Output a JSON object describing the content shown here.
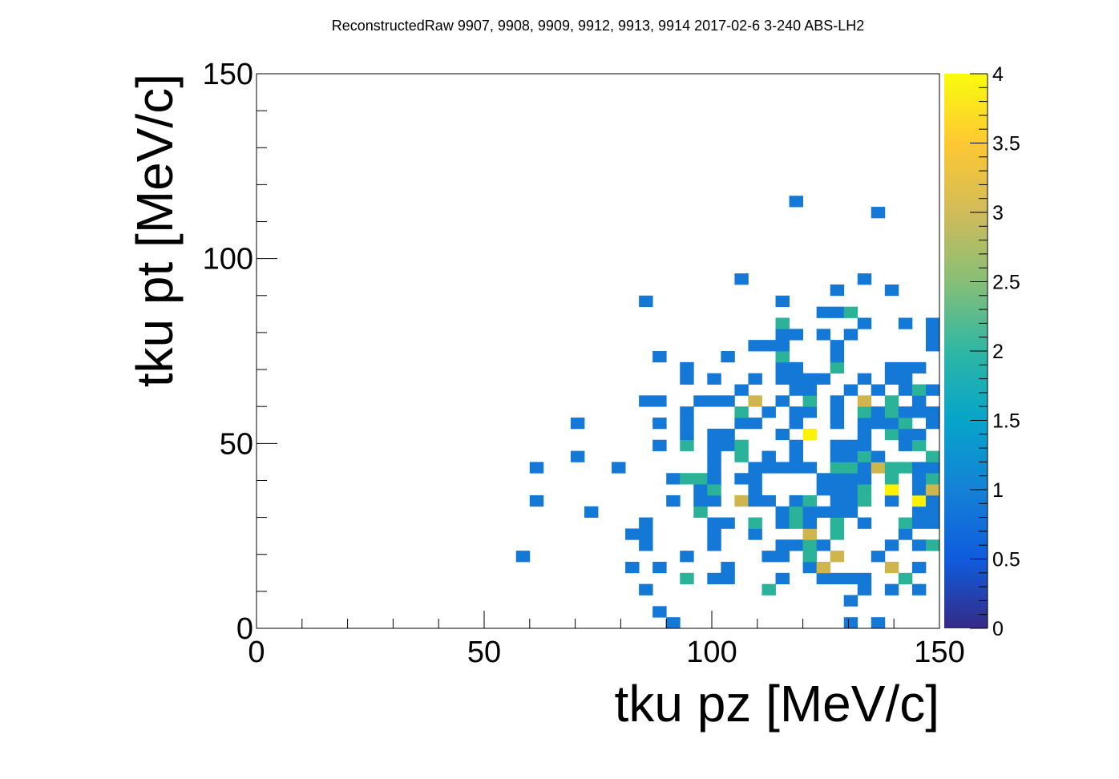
{
  "chart_data": {
    "type": "heatmap",
    "title": "ReconstructedRaw 9907, 9908, 9909, 9912, 9913, 9914 2017-02-6 3-240 ABS-LH2",
    "xlabel": "tku pz [MeV/c]",
    "ylabel": "tku pt [MeV/c]",
    "xlim": [
      0,
      150
    ],
    "ylim": [
      0,
      150
    ],
    "bin_width": 3,
    "x_ticks": [
      "0",
      "50",
      "100",
      "150"
    ],
    "y_ticks": [
      "0",
      "50",
      "100",
      "150"
    ],
    "colorbar": {
      "min": 0,
      "max": 4,
      "ticks": [
        "0",
        "0.5",
        "1",
        "1.5",
        "2",
        "2.5",
        "3",
        "3.5",
        "4"
      ]
    },
    "colors": {
      "1": "#1478d6",
      "2": "#2bb39a",
      "3": "#cfb54e",
      "4": "#fff200"
    },
    "bins": [
      [
        91.5,
        1.5,
        1
      ],
      [
        130.5,
        1.5,
        1
      ],
      [
        136.5,
        1.5,
        1
      ],
      [
        88.5,
        4.5,
        1
      ],
      [
        130.5,
        7.5,
        1
      ],
      [
        85.5,
        10.5,
        1
      ],
      [
        112.5,
        10.5,
        2
      ],
      [
        133.5,
        10.5,
        1
      ],
      [
        139.5,
        10.5,
        1
      ],
      [
        145.5,
        10.5,
        1
      ],
      [
        94.5,
        13.5,
        2
      ],
      [
        100.5,
        13.5,
        1
      ],
      [
        103.5,
        13.5,
        1
      ],
      [
        115.5,
        13.5,
        1
      ],
      [
        124.5,
        13.5,
        1
      ],
      [
        127.5,
        13.5,
        1
      ],
      [
        130.5,
        13.5,
        1
      ],
      [
        133.5,
        13.5,
        1
      ],
      [
        142.5,
        13.5,
        2
      ],
      [
        82.5,
        16.5,
        1
      ],
      [
        88.5,
        16.5,
        1
      ],
      [
        103.5,
        16.5,
        1
      ],
      [
        121.5,
        16.5,
        1
      ],
      [
        124.5,
        16.5,
        3
      ],
      [
        139.5,
        16.5,
        3
      ],
      [
        145.5,
        16.5,
        1
      ],
      [
        58.5,
        19.5,
        1
      ],
      [
        94.5,
        19.5,
        1
      ],
      [
        112.5,
        19.5,
        1
      ],
      [
        115.5,
        19.5,
        1
      ],
      [
        121.5,
        19.5,
        2
      ],
      [
        127.5,
        19.5,
        3
      ],
      [
        136.5,
        19.5,
        1
      ],
      [
        85.5,
        22.5,
        1
      ],
      [
        100.5,
        22.5,
        1
      ],
      [
        115.5,
        22.5,
        1
      ],
      [
        118.5,
        22.5,
        1
      ],
      [
        121.5,
        22.5,
        2
      ],
      [
        124.5,
        22.5,
        1
      ],
      [
        139.5,
        22.5,
        1
      ],
      [
        145.5,
        22.5,
        1
      ],
      [
        148.5,
        22.5,
        2
      ],
      [
        82.5,
        25.5,
        1
      ],
      [
        85.5,
        25.5,
        1
      ],
      [
        100.5,
        25.5,
        1
      ],
      [
        109.5,
        25.5,
        1
      ],
      [
        121.5,
        25.5,
        3
      ],
      [
        127.5,
        25.5,
        2
      ],
      [
        142.5,
        25.5,
        1
      ],
      [
        85.5,
        28.5,
        1
      ],
      [
        100.5,
        28.5,
        1
      ],
      [
        103.5,
        28.5,
        1
      ],
      [
        109.5,
        28.5,
        2
      ],
      [
        115.5,
        28.5,
        1
      ],
      [
        118.5,
        28.5,
        2
      ],
      [
        121.5,
        28.5,
        1
      ],
      [
        127.5,
        28.5,
        2
      ],
      [
        133.5,
        28.5,
        1
      ],
      [
        142.5,
        28.5,
        2
      ],
      [
        145.5,
        28.5,
        1
      ],
      [
        148.5,
        28.5,
        1
      ],
      [
        73.5,
        31.5,
        1
      ],
      [
        97.5,
        31.5,
        2
      ],
      [
        115.5,
        31.5,
        1
      ],
      [
        118.5,
        31.5,
        2
      ],
      [
        121.5,
        31.5,
        1
      ],
      [
        124.5,
        31.5,
        1
      ],
      [
        127.5,
        31.5,
        1
      ],
      [
        130.5,
        31.5,
        1
      ],
      [
        145.5,
        31.5,
        1
      ],
      [
        148.5,
        31.5,
        1
      ],
      [
        61.5,
        34.5,
        1
      ],
      [
        91.5,
        34.5,
        1
      ],
      [
        97.5,
        34.5,
        1
      ],
      [
        100.5,
        34.5,
        1
      ],
      [
        106.5,
        34.5,
        3
      ],
      [
        109.5,
        34.5,
        1
      ],
      [
        112.5,
        34.5,
        1
      ],
      [
        118.5,
        34.5,
        1
      ],
      [
        121.5,
        34.5,
        2
      ],
      [
        127.5,
        34.5,
        1
      ],
      [
        130.5,
        34.5,
        1
      ],
      [
        133.5,
        34.5,
        2
      ],
      [
        139.5,
        34.5,
        1
      ],
      [
        145.5,
        34.5,
        4
      ],
      [
        148.5,
        34.5,
        1
      ],
      [
        97.5,
        37.5,
        1
      ],
      [
        100.5,
        37.5,
        2
      ],
      [
        109.5,
        37.5,
        1
      ],
      [
        124.5,
        37.5,
        1
      ],
      [
        127.5,
        37.5,
        1
      ],
      [
        130.5,
        37.5,
        1
      ],
      [
        133.5,
        37.5,
        2
      ],
      [
        139.5,
        37.5,
        4
      ],
      [
        145.5,
        37.5,
        1
      ],
      [
        148.5,
        37.5,
        3
      ],
      [
        91.5,
        40.5,
        1
      ],
      [
        94.5,
        40.5,
        2
      ],
      [
        97.5,
        40.5,
        2
      ],
      [
        100.5,
        40.5,
        1
      ],
      [
        106.5,
        40.5,
        1
      ],
      [
        109.5,
        40.5,
        1
      ],
      [
        124.5,
        40.5,
        1
      ],
      [
        127.5,
        40.5,
        1
      ],
      [
        130.5,
        40.5,
        1
      ],
      [
        133.5,
        40.5,
        1
      ],
      [
        139.5,
        40.5,
        2
      ],
      [
        145.5,
        40.5,
        1
      ],
      [
        148.5,
        40.5,
        2
      ],
      [
        61.5,
        43.5,
        1
      ],
      [
        79.5,
        43.5,
        1
      ],
      [
        100.5,
        43.5,
        1
      ],
      [
        109.5,
        43.5,
        1
      ],
      [
        112.5,
        43.5,
        1
      ],
      [
        115.5,
        43.5,
        1
      ],
      [
        118.5,
        43.5,
        1
      ],
      [
        121.5,
        43.5,
        1
      ],
      [
        127.5,
        43.5,
        2
      ],
      [
        130.5,
        43.5,
        2
      ],
      [
        133.5,
        43.5,
        1
      ],
      [
        136.5,
        43.5,
        3
      ],
      [
        139.5,
        43.5,
        2
      ],
      [
        142.5,
        43.5,
        2
      ],
      [
        145.5,
        43.5,
        1
      ],
      [
        148.5,
        43.5,
        1
      ],
      [
        70.5,
        46.5,
        1
      ],
      [
        100.5,
        46.5,
        1
      ],
      [
        106.5,
        46.5,
        2
      ],
      [
        112.5,
        46.5,
        1
      ],
      [
        118.5,
        46.5,
        1
      ],
      [
        127.5,
        46.5,
        1
      ],
      [
        130.5,
        46.5,
        1
      ],
      [
        133.5,
        46.5,
        2
      ],
      [
        136.5,
        46.5,
        1
      ],
      [
        148.5,
        46.5,
        2
      ],
      [
        88.5,
        49.5,
        1
      ],
      [
        94.5,
        49.5,
        2
      ],
      [
        100.5,
        49.5,
        1
      ],
      [
        103.5,
        49.5,
        1
      ],
      [
        106.5,
        49.5,
        2
      ],
      [
        118.5,
        49.5,
        1
      ],
      [
        127.5,
        49.5,
        1
      ],
      [
        130.5,
        49.5,
        1
      ],
      [
        133.5,
        49.5,
        1
      ],
      [
        142.5,
        49.5,
        1
      ],
      [
        145.5,
        49.5,
        2
      ],
      [
        94.5,
        52.5,
        1
      ],
      [
        100.5,
        52.5,
        1
      ],
      [
        103.5,
        52.5,
        1
      ],
      [
        115.5,
        52.5,
        1
      ],
      [
        121.5,
        52.5,
        4
      ],
      [
        133.5,
        52.5,
        1
      ],
      [
        139.5,
        52.5,
        2
      ],
      [
        142.5,
        52.5,
        1
      ],
      [
        145.5,
        52.5,
        1
      ],
      [
        70.5,
        55.5,
        1
      ],
      [
        88.5,
        55.5,
        1
      ],
      [
        94.5,
        55.5,
        1
      ],
      [
        106.5,
        55.5,
        1
      ],
      [
        109.5,
        55.5,
        1
      ],
      [
        118.5,
        55.5,
        1
      ],
      [
        127.5,
        55.5,
        1
      ],
      [
        133.5,
        55.5,
        1
      ],
      [
        136.5,
        55.5,
        1
      ],
      [
        139.5,
        55.5,
        1
      ],
      [
        142.5,
        55.5,
        2
      ],
      [
        148.5,
        55.5,
        1
      ],
      [
        94.5,
        58.5,
        1
      ],
      [
        106.5,
        58.5,
        2
      ],
      [
        112.5,
        58.5,
        1
      ],
      [
        118.5,
        58.5,
        1
      ],
      [
        121.5,
        58.5,
        1
      ],
      [
        127.5,
        58.5,
        1
      ],
      [
        133.5,
        58.5,
        2
      ],
      [
        136.5,
        58.5,
        1
      ],
      [
        139.5,
        58.5,
        2
      ],
      [
        142.5,
        58.5,
        1
      ],
      [
        145.5,
        58.5,
        1
      ],
      [
        148.5,
        58.5,
        1
      ],
      [
        85.5,
        61.5,
        1
      ],
      [
        88.5,
        61.5,
        1
      ],
      [
        97.5,
        61.5,
        1
      ],
      [
        100.5,
        61.5,
        1
      ],
      [
        103.5,
        61.5,
        1
      ],
      [
        109.5,
        61.5,
        3
      ],
      [
        115.5,
        61.5,
        1
      ],
      [
        121.5,
        61.5,
        2
      ],
      [
        127.5,
        61.5,
        1
      ],
      [
        133.5,
        61.5,
        3
      ],
      [
        139.5,
        61.5,
        2
      ],
      [
        145.5,
        61.5,
        1
      ],
      [
        106.5,
        64.5,
        1
      ],
      [
        118.5,
        64.5,
        1
      ],
      [
        121.5,
        64.5,
        1
      ],
      [
        130.5,
        64.5,
        1
      ],
      [
        136.5,
        64.5,
        1
      ],
      [
        142.5,
        64.5,
        1
      ],
      [
        145.5,
        64.5,
        2
      ],
      [
        148.5,
        64.5,
        1
      ],
      [
        94.5,
        67.5,
        1
      ],
      [
        100.5,
        67.5,
        1
      ],
      [
        109.5,
        67.5,
        1
      ],
      [
        115.5,
        67.5,
        1
      ],
      [
        118.5,
        67.5,
        1
      ],
      [
        121.5,
        67.5,
        1
      ],
      [
        124.5,
        67.5,
        1
      ],
      [
        133.5,
        67.5,
        1
      ],
      [
        139.5,
        67.5,
        1
      ],
      [
        142.5,
        67.5,
        1
      ],
      [
        94.5,
        70.5,
        1
      ],
      [
        115.5,
        70.5,
        1
      ],
      [
        118.5,
        70.5,
        1
      ],
      [
        127.5,
        70.5,
        2
      ],
      [
        139.5,
        70.5,
        1
      ],
      [
        142.5,
        70.5,
        1
      ],
      [
        145.5,
        70.5,
        1
      ],
      [
        88.5,
        73.5,
        1
      ],
      [
        103.5,
        73.5,
        1
      ],
      [
        115.5,
        73.5,
        2
      ],
      [
        127.5,
        73.5,
        1
      ],
      [
        109.5,
        76.5,
        1
      ],
      [
        112.5,
        76.5,
        1
      ],
      [
        115.5,
        76.5,
        1
      ],
      [
        127.5,
        76.5,
        1
      ],
      [
        148.5,
        76.5,
        1
      ],
      [
        115.5,
        79.5,
        1
      ],
      [
        118.5,
        79.5,
        1
      ],
      [
        124.5,
        79.5,
        1
      ],
      [
        130.5,
        79.5,
        1
      ],
      [
        148.5,
        79.5,
        1
      ],
      [
        115.5,
        82.5,
        2
      ],
      [
        133.5,
        82.5,
        1
      ],
      [
        142.5,
        82.5,
        1
      ],
      [
        148.5,
        82.5,
        1
      ],
      [
        124.5,
        85.5,
        1
      ],
      [
        127.5,
        85.5,
        1
      ],
      [
        130.5,
        85.5,
        2
      ],
      [
        85.5,
        88.5,
        1
      ],
      [
        115.5,
        88.5,
        1
      ],
      [
        127.5,
        91.5,
        1
      ],
      [
        139.5,
        91.5,
        1
      ],
      [
        106.5,
        94.5,
        1
      ],
      [
        133.5,
        94.5,
        1
      ],
      [
        136.5,
        112.5,
        1
      ],
      [
        118.5,
        115.5,
        1
      ]
    ]
  }
}
